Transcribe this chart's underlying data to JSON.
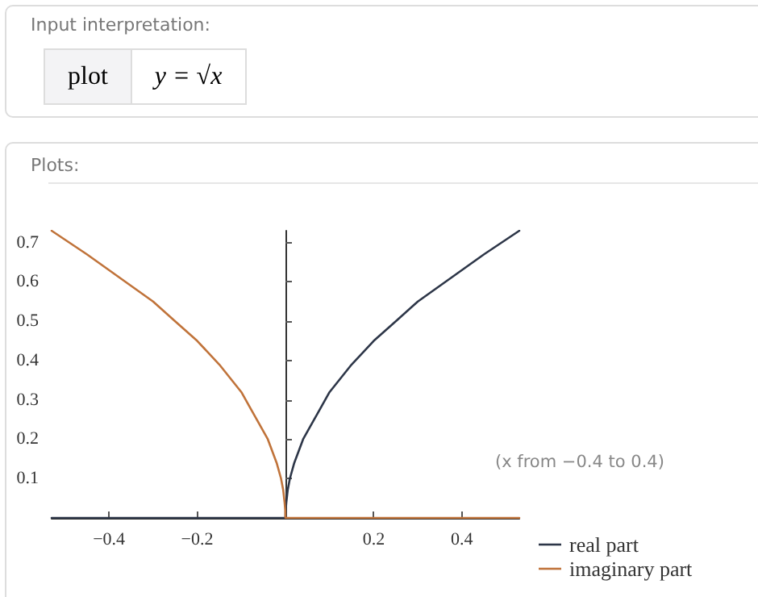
{
  "chart_data": {
    "type": "line",
    "annotations": [
      "Input interpretation:",
      "plot",
      "y = √x",
      "Plots:",
      "(x from −0.4 to 0.4)"
    ],
    "xlim": [
      -0.53,
      0.53
    ],
    "ylim": [
      0,
      0.73
    ],
    "xticks": [
      -0.4,
      -0.2,
      0.2,
      0.4
    ],
    "yticks": [
      0.1,
      0.2,
      0.3,
      0.4,
      0.5,
      0.6,
      0.7
    ],
    "grid": false,
    "legend": "right",
    "series": [
      {
        "name": "real part",
        "color": "#2d3648",
        "x": [
          -0.53,
          0,
          0.0005,
          0.002,
          0.005,
          0.01,
          0.02,
          0.04,
          0.06,
          0.1,
          0.15,
          0.2,
          0.25,
          0.3,
          0.35,
          0.4,
          0.45,
          0.53
        ],
        "values": [
          0,
          0,
          0.02,
          0.04,
          0.07,
          0.1,
          0.14,
          0.2,
          0.24,
          0.32,
          0.39,
          0.45,
          0.5,
          0.55,
          0.59,
          0.63,
          0.67,
          0.73
        ]
      },
      {
        "name": "imaginary part",
        "color": "#c0733a",
        "x": [
          -0.53,
          -0.45,
          -0.4,
          -0.35,
          -0.3,
          -0.25,
          -0.2,
          -0.15,
          -0.1,
          -0.06,
          -0.04,
          -0.02,
          -0.01,
          -0.005,
          -0.002,
          -0.0005,
          0,
          0.53
        ],
        "values": [
          0.73,
          0.67,
          0.63,
          0.59,
          0.55,
          0.5,
          0.45,
          0.39,
          0.32,
          0.24,
          0.2,
          0.14,
          0.1,
          0.07,
          0.04,
          0.02,
          0,
          0
        ]
      }
    ]
  }
}
